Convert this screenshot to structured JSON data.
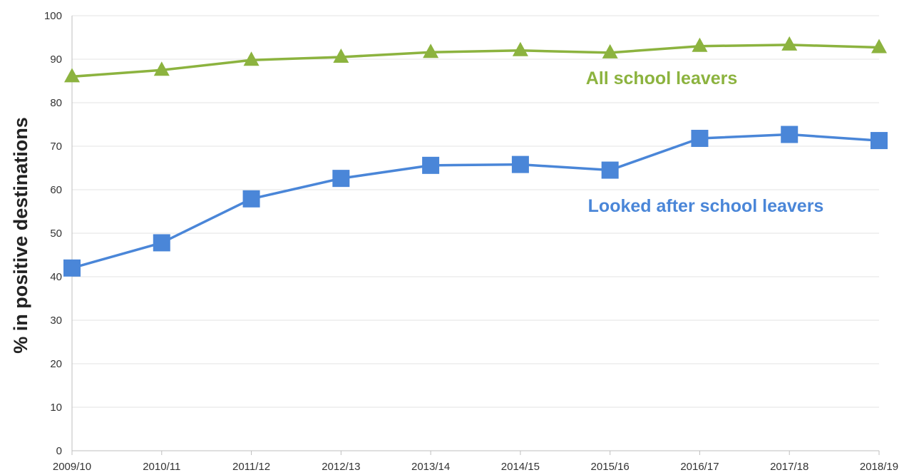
{
  "chart_data": {
    "type": "line",
    "title": "",
    "xlabel": "",
    "ylabel": "% in positive destinations",
    "categories": [
      "2009/10",
      "2010/11",
      "2011/12",
      "2012/13",
      "2013/14",
      "2014/15",
      "2015/16",
      "2016/17",
      "2017/18",
      "2018/19"
    ],
    "ylim": [
      0,
      100
    ],
    "yticks": [
      "0",
      "10",
      "20",
      "30",
      "40",
      "50",
      "60",
      "70",
      "80",
      "90",
      "100"
    ],
    "grid": true,
    "legend": "inline labels",
    "series": [
      {
        "name": "All school leavers",
        "values": [
          86.0,
          87.5,
          89.8,
          90.5,
          91.6,
          92.0,
          91.5,
          93.0,
          93.3,
          92.7
        ],
        "color": "#8cb33f",
        "marker": "triangle"
      },
      {
        "name": "Looked after school leavers",
        "values": [
          42.0,
          47.8,
          57.9,
          62.6,
          65.6,
          65.8,
          64.5,
          71.8,
          72.7,
          71.3
        ],
        "color": "#4a86d8",
        "marker": "square"
      }
    ]
  }
}
